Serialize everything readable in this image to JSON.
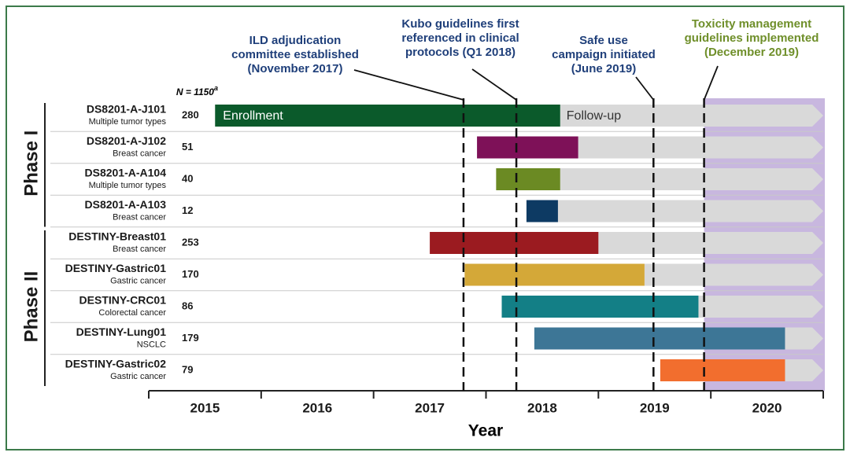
{
  "chart_data": {
    "type": "gantt",
    "xlabel": "Year",
    "xlim": [
      2015,
      2021
    ],
    "xticks": [
      2015,
      2016,
      2017,
      2018,
      2019,
      2020,
      2021
    ],
    "xtick_labels": [
      {
        "value": 2015.5,
        "label": "2015"
      },
      {
        "value": 2016.5,
        "label": "2016"
      },
      {
        "value": 2017.5,
        "label": "2017"
      },
      {
        "value": 2018.5,
        "label": "2018"
      },
      {
        "value": 2019.5,
        "label": "2019"
      },
      {
        "value": 2020.5,
        "label": "2020"
      }
    ],
    "n_header": {
      "label": "N = 1150",
      "note": "a"
    },
    "bar_labels": {
      "enrollment": "Enrollment",
      "follow_up": "Follow-up"
    },
    "follow_up_color": "#d9d9d9",
    "shade": {
      "start": 2019.94,
      "color": "#c8b7df"
    },
    "groups": [
      {
        "label": "Phase I",
        "rows": [
          {
            "name": "DS8201-A-J101",
            "subtitle": "Multiple tumor types",
            "n": 280,
            "start": 2015.59,
            "end": 2018.66,
            "color": "#0b5a2b"
          },
          {
            "name": "DS8201-A-J102",
            "subtitle": "Breast cancer",
            "n": 51,
            "start": 2017.92,
            "end": 2018.82,
            "color": "#7e1158"
          },
          {
            "name": "DS8201-A-A104",
            "subtitle": "Multiple tumor types",
            "n": 40,
            "start": 2018.09,
            "end": 2018.66,
            "color": "#6b8a23"
          },
          {
            "name": "DS8201-A-A103",
            "subtitle": "Breast cancer",
            "n": 12,
            "start": 2018.36,
            "end": 2018.64,
            "color": "#0d3a63"
          }
        ]
      },
      {
        "label": "Phase II",
        "rows": [
          {
            "name": "DESTINY-Breast01",
            "subtitle": "Breast cancer",
            "n": 253,
            "start": 2017.5,
            "end": 2019.0,
            "color": "#9b1b20"
          },
          {
            "name": "DESTINY-Gastric01",
            "subtitle": "Gastric cancer",
            "n": 170,
            "start": 2017.81,
            "end": 2019.41,
            "color": "#d4a838"
          },
          {
            "name": "DESTINY-CRC01",
            "subtitle": "Colorectal cancer",
            "n": 86,
            "start": 2018.14,
            "end": 2019.89,
            "color": "#137f86"
          },
          {
            "name": "DESTINY-Lung01",
            "subtitle": "NSCLC",
            "n": 179,
            "start": 2018.43,
            "end": 2020.66,
            "color": "#3d7696"
          },
          {
            "name": "DESTINY-Gastric02",
            "subtitle": "Gastric cancer",
            "n": 79,
            "start": 2019.55,
            "end": 2020.66,
            "color": "#f26e2e"
          }
        ]
      }
    ],
    "annotations": [
      {
        "lines": [
          "ILD adjudication",
          "committee established",
          "(November 2017)"
        ],
        "x": 2017.8,
        "color": "#1f3f7a"
      },
      {
        "lines": [
          "Kubo guidelines first",
          "referenced in clinical",
          "protocols (Q1 2018)"
        ],
        "x": 2018.27,
        "color": "#1f3f7a"
      },
      {
        "lines": [
          "Safe use",
          "campaign initiated",
          "(June 2019)"
        ],
        "x": 2019.49,
        "color": "#1f3f7a"
      },
      {
        "lines": [
          "Toxicity management",
          "guidelines implemented",
          "(December 2019)"
        ],
        "x": 2019.94,
        "color": "#6f8f2a"
      }
    ]
  }
}
